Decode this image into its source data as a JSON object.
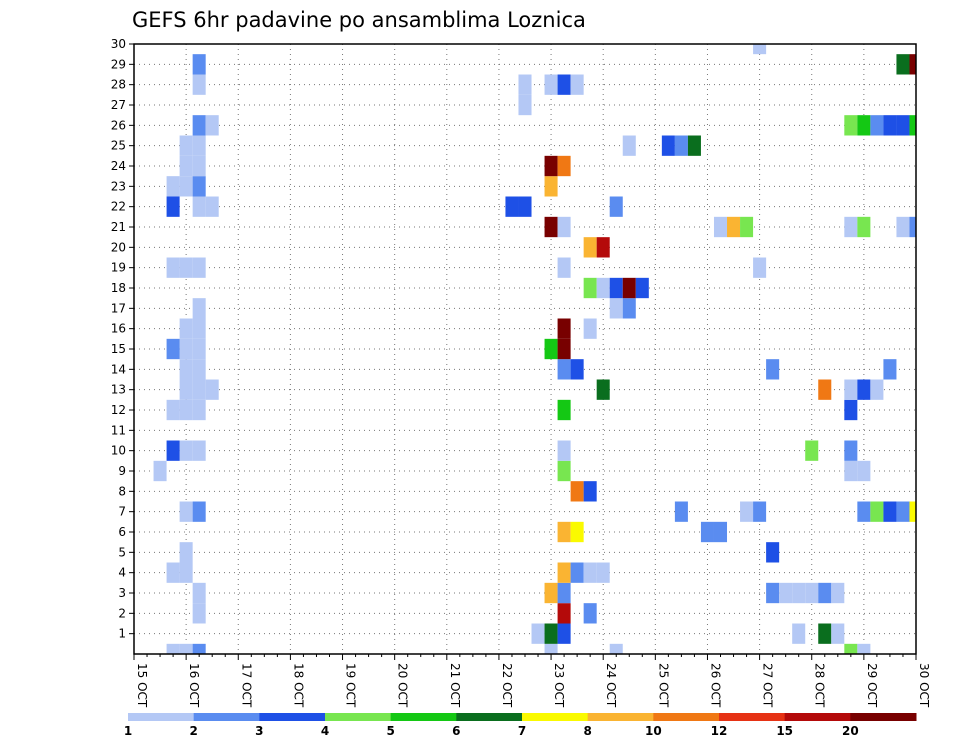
{
  "chart_data": {
    "type": "heatmap",
    "title": "GEFS 6hr padavine po ansamblima Loznica",
    "xlabel": "",
    "ylabel": "",
    "x_tick_labels": [
      "15 OCT",
      "16 OCT",
      "17 OCT",
      "18 OCT",
      "19 OCT",
      "20 OCT",
      "21 OCT",
      "22 OCT",
      "23 OCT",
      "24 OCT",
      "25 OCT",
      "26 OCT",
      "27 OCT",
      "28 OCT",
      "29 OCT",
      "30 OCT"
    ],
    "y_tick_labels": [
      "1",
      "2",
      "3",
      "4",
      "5",
      "6",
      "7",
      "8",
      "9",
      "10",
      "11",
      "12",
      "13",
      "14",
      "15",
      "16",
      "17",
      "18",
      "19",
      "20",
      "21",
      "22",
      "23",
      "24",
      "25",
      "26",
      "27",
      "28",
      "29",
      "30"
    ],
    "xlim_days": [
      0,
      15
    ],
    "ylim": [
      0,
      30
    ],
    "grid": true,
    "time_step_hours": 6,
    "colorbar": {
      "levels": [
        "1",
        "2",
        "3",
        "4",
        "5",
        "6",
        "7",
        "8",
        "10",
        "12",
        "15",
        "20"
      ],
      "colors": [
        "#b4c8f5",
        "#5a8cf0",
        "#1e50e6",
        "#78e650",
        "#14c814",
        "#0a6e1e",
        "#fafa00",
        "#fab432",
        "#f07814",
        "#e63214",
        "#b40a0a",
        "#780000"
      ]
    },
    "cells": [
      {
        "t": "16 OCT 00Z",
        "m": 0,
        "c": 0
      },
      {
        "t": "16 OCT 00Z",
        "m": 4,
        "c": 0
      },
      {
        "t": "16 OCT 00Z",
        "m": 5,
        "c": 0
      },
      {
        "t": "16 OCT 00Z",
        "m": 7,
        "c": 0
      },
      {
        "t": "16 OCT 00Z",
        "m": 10,
        "c": 0
      },
      {
        "t": "16 OCT 00Z",
        "m": 12,
        "c": 0
      },
      {
        "t": "16 OCT 00Z",
        "m": 13,
        "c": 0
      },
      {
        "t": "16 OCT 00Z",
        "m": 14,
        "c": 0
      },
      {
        "t": "16 OCT 00Z",
        "m": 15,
        "c": 0
      },
      {
        "t": "16 OCT 00Z",
        "m": 16,
        "c": 0
      },
      {
        "t": "16 OCT 00Z",
        "m": 19,
        "c": 0
      },
      {
        "t": "16 OCT 00Z",
        "m": 23,
        "c": 0
      },
      {
        "t": "16 OCT 00Z",
        "m": 24,
        "c": 0
      },
      {
        "t": "16 OCT 00Z",
        "m": 25,
        "c": 0
      },
      {
        "t": "15 OCT 18Z",
        "m": 4,
        "c": 0
      },
      {
        "t": "15 OCT 18Z",
        "m": 12,
        "c": 0
      },
      {
        "t": "15 OCT 18Z",
        "m": 15,
        "c": 1
      },
      {
        "t": "15 OCT 18Z",
        "m": 19,
        "c": 0
      },
      {
        "t": "15 OCT 18Z",
        "m": 22,
        "c": 2
      },
      {
        "t": "15 OCT 18Z",
        "m": 23,
        "c": 0
      },
      {
        "t": "15 OCT 12Z",
        "m": 9,
        "c": 0
      },
      {
        "t": "15 OCT 18Z",
        "m": 10,
        "c": 2
      },
      {
        "t": "15 OCT 18Z",
        "m": 0,
        "c": 0
      },
      {
        "t": "16 OCT 06Z",
        "m": 3,
        "c": 0
      },
      {
        "t": "16 OCT 06Z",
        "m": 2,
        "c": 0
      },
      {
        "t": "16 OCT 06Z",
        "m": 7,
        "c": 1
      },
      {
        "t": "16 OCT 06Z",
        "m": 10,
        "c": 0
      },
      {
        "t": "16 OCT 06Z",
        "m": 12,
        "c": 0
      },
      {
        "t": "16 OCT 06Z",
        "m": 13,
        "c": 0
      },
      {
        "t": "16 OCT 06Z",
        "m": 14,
        "c": 0
      },
      {
        "t": "16 OCT 06Z",
        "m": 15,
        "c": 0
      },
      {
        "t": "16 OCT 06Z",
        "m": 16,
        "c": 0
      },
      {
        "t": "16 OCT 06Z",
        "m": 17,
        "c": 0
      },
      {
        "t": "16 OCT 06Z",
        "m": 19,
        "c": 0
      },
      {
        "t": "16 OCT 06Z",
        "m": 22,
        "c": 0
      },
      {
        "t": "16 OCT 06Z",
        "m": 23,
        "c": 1
      },
      {
        "t": "16 OCT 06Z",
        "m": 24,
        "c": 0
      },
      {
        "t": "16 OCT 06Z",
        "m": 25,
        "c": 0
      },
      {
        "t": "16 OCT 06Z",
        "m": 26,
        "c": 1
      },
      {
        "t": "16 OCT 06Z",
        "m": 28,
        "c": 0
      },
      {
        "t": "16 OCT 06Z",
        "m": 29,
        "c": 1
      },
      {
        "t": "16 OCT 06Z",
        "m": 0,
        "c": 1
      },
      {
        "t": "16 OCT 12Z",
        "m": 13,
        "c": 0
      },
      {
        "t": "16 OCT 12Z",
        "m": 22,
        "c": 0
      },
      {
        "t": "16 OCT 12Z",
        "m": 26,
        "c": 0
      },
      {
        "t": "22 OCT 12Z",
        "m": 27,
        "c": 0
      },
      {
        "t": "22 OCT 12Z",
        "m": 28,
        "c": 0
      },
      {
        "t": "22 OCT 06Z",
        "m": 22,
        "c": 2
      },
      {
        "t": "22 OCT 12Z",
        "m": 22,
        "c": 2
      },
      {
        "t": "22 OCT 18Z",
        "m": 1,
        "c": 0
      },
      {
        "t": "23 OCT 00Z",
        "m": 0,
        "c": 0
      },
      {
        "t": "23 OCT 00Z",
        "m": 1,
        "c": 5
      },
      {
        "t": "23 OCT 00Z",
        "m": 3,
        "c": 7
      },
      {
        "t": "23 OCT 00Z",
        "m": 15,
        "c": 4
      },
      {
        "t": "23 OCT 00Z",
        "m": 21,
        "c": 11
      },
      {
        "t": "23 OCT 00Z",
        "m": 23,
        "c": 7
      },
      {
        "t": "23 OCT 00Z",
        "m": 24,
        "c": 11
      },
      {
        "t": "23 OCT 00Z",
        "m": 28,
        "c": 0
      },
      {
        "t": "23 OCT 06Z",
        "m": 1,
        "c": 2
      },
      {
        "t": "23 OCT 06Z",
        "m": 2,
        "c": 10
      },
      {
        "t": "23 OCT 06Z",
        "m": 3,
        "c": 1
      },
      {
        "t": "23 OCT 06Z",
        "m": 4,
        "c": 7
      },
      {
        "t": "23 OCT 06Z",
        "m": 6,
        "c": 7
      },
      {
        "t": "23 OCT 06Z",
        "m": 9,
        "c": 3
      },
      {
        "t": "23 OCT 06Z",
        "m": 10,
        "c": 0
      },
      {
        "t": "23 OCT 06Z",
        "m": 12,
        "c": 4
      },
      {
        "t": "23 OCT 06Z",
        "m": 14,
        "c": 1
      },
      {
        "t": "23 OCT 06Z",
        "m": 15,
        "c": 11
      },
      {
        "t": "23 OCT 06Z",
        "m": 16,
        "c": 11
      },
      {
        "t": "23 OCT 06Z",
        "m": 19,
        "c": 0
      },
      {
        "t": "23 OCT 06Z",
        "m": 21,
        "c": 0
      },
      {
        "t": "23 OCT 06Z",
        "m": 24,
        "c": 8
      },
      {
        "t": "23 OCT 06Z",
        "m": 28,
        "c": 2
      },
      {
        "t": "23 OCT 12Z",
        "m": 4,
        "c": 1
      },
      {
        "t": "23 OCT 12Z",
        "m": 6,
        "c": 6
      },
      {
        "t": "23 OCT 12Z",
        "m": 8,
        "c": 8
      },
      {
        "t": "23 OCT 12Z",
        "m": 14,
        "c": 2
      },
      {
        "t": "23 OCT 12Z",
        "m": 28,
        "c": 0
      },
      {
        "t": "23 OCT 18Z",
        "m": 2,
        "c": 1
      },
      {
        "t": "23 OCT 18Z",
        "m": 4,
        "c": 0
      },
      {
        "t": "23 OCT 18Z",
        "m": 8,
        "c": 2
      },
      {
        "t": "23 OCT 18Z",
        "m": 16,
        "c": 0
      },
      {
        "t": "23 OCT 18Z",
        "m": 18,
        "c": 3
      },
      {
        "t": "23 OCT 18Z",
        "m": 20,
        "c": 7
      },
      {
        "t": "24 OCT 00Z",
        "m": 4,
        "c": 0
      },
      {
        "t": "24 OCT 00Z",
        "m": 13,
        "c": 5
      },
      {
        "t": "24 OCT 00Z",
        "m": 18,
        "c": 0
      },
      {
        "t": "24 OCT 00Z",
        "m": 20,
        "c": 10
      },
      {
        "t": "24 OCT 06Z",
        "m": 0,
        "c": 0
      },
      {
        "t": "24 OCT 06Z",
        "m": 17,
        "c": 0
      },
      {
        "t": "24 OCT 06Z",
        "m": 18,
        "c": 2
      },
      {
        "t": "24 OCT 06Z",
        "m": 22,
        "c": 1
      },
      {
        "t": "24 OCT 12Z",
        "m": 17,
        "c": 1
      },
      {
        "t": "24 OCT 12Z",
        "m": 18,
        "c": 11
      },
      {
        "t": "24 OCT 12Z",
        "m": 25,
        "c": 0
      },
      {
        "t": "24 OCT 18Z",
        "m": 18,
        "c": 2
      },
      {
        "t": "25 OCT 06Z",
        "m": 25,
        "c": 2
      },
      {
        "t": "25 OCT 12Z",
        "m": 7,
        "c": 1
      },
      {
        "t": "25 OCT 12Z",
        "m": 25,
        "c": 1
      },
      {
        "t": "25 OCT 18Z",
        "m": 25,
        "c": 5
      },
      {
        "t": "26 OCT 00Z",
        "m": 6,
        "c": 1
      },
      {
        "t": "26 OCT 06Z",
        "m": 6,
        "c": 1
      },
      {
        "t": "26 OCT 06Z",
        "m": 21,
        "c": 0
      },
      {
        "t": "26 OCT 12Z",
        "m": 21,
        "c": 7
      },
      {
        "t": "26 OCT 18Z",
        "m": 7,
        "c": 0
      },
      {
        "t": "26 OCT 18Z",
        "m": 21,
        "c": 3
      },
      {
        "t": "27 OCT 00Z",
        "m": 7,
        "c": 1
      },
      {
        "t": "27 OCT 00Z",
        "m": 19,
        "c": 0
      },
      {
        "t": "27 OCT 00Z",
        "m": 30,
        "c": 0
      },
      {
        "t": "27 OCT 06Z",
        "m": 3,
        "c": 1
      },
      {
        "t": "27 OCT 06Z",
        "m": 5,
        "c": 2
      },
      {
        "t": "27 OCT 06Z",
        "m": 14,
        "c": 1
      },
      {
        "t": "27 OCT 12Z",
        "m": 3,
        "c": 0
      },
      {
        "t": "27 OCT 18Z",
        "m": 1,
        "c": 0
      },
      {
        "t": "27 OCT 18Z",
        "m": 3,
        "c": 0
      },
      {
        "t": "28 OCT 00Z",
        "m": 3,
        "c": 0
      },
      {
        "t": "28 OCT 00Z",
        "m": 10,
        "c": 3
      },
      {
        "t": "28 OCT 06Z",
        "m": 1,
        "c": 5
      },
      {
        "t": "28 OCT 06Z",
        "m": 3,
        "c": 1
      },
      {
        "t": "28 OCT 06Z",
        "m": 13,
        "c": 8
      },
      {
        "t": "28 OCT 12Z",
        "m": 1,
        "c": 0
      },
      {
        "t": "28 OCT 12Z",
        "m": 3,
        "c": 0
      },
      {
        "t": "28 OCT 18Z",
        "m": 0,
        "c": 3
      },
      {
        "t": "28 OCT 18Z",
        "m": 9,
        "c": 0
      },
      {
        "t": "28 OCT 18Z",
        "m": 10,
        "c": 1
      },
      {
        "t": "28 OCT 18Z",
        "m": 12,
        "c": 2
      },
      {
        "t": "28 OCT 18Z",
        "m": 13,
        "c": 0
      },
      {
        "t": "28 OCT 18Z",
        "m": 21,
        "c": 0
      },
      {
        "t": "28 OCT 18Z",
        "m": 26,
        "c": 3
      },
      {
        "t": "29 OCT 00Z",
        "m": 0,
        "c": 0
      },
      {
        "t": "29 OCT 00Z",
        "m": 7,
        "c": 1
      },
      {
        "t": "29 OCT 00Z",
        "m": 9,
        "c": 0
      },
      {
        "t": "29 OCT 00Z",
        "m": 13,
        "c": 2
      },
      {
        "t": "29 OCT 00Z",
        "m": 21,
        "c": 3
      },
      {
        "t": "29 OCT 00Z",
        "m": 26,
        "c": 4
      },
      {
        "t": "29 OCT 06Z",
        "m": 7,
        "c": 3
      },
      {
        "t": "29 OCT 06Z",
        "m": 13,
        "c": 0
      },
      {
        "t": "29 OCT 06Z",
        "m": 26,
        "c": 1
      },
      {
        "t": "29 OCT 12Z",
        "m": 7,
        "c": 2
      },
      {
        "t": "29 OCT 12Z",
        "m": 14,
        "c": 1
      },
      {
        "t": "29 OCT 12Z",
        "m": 26,
        "c": 2
      },
      {
        "t": "29 OCT 18Z",
        "m": 7,
        "c": 1
      },
      {
        "t": "29 OCT 18Z",
        "m": 21,
        "c": 0
      },
      {
        "t": "29 OCT 18Z",
        "m": 26,
        "c": 2
      },
      {
        "t": "29 OCT 18Z",
        "m": 29,
        "c": 5
      },
      {
        "t": "30 OCT 00Z",
        "m": 7,
        "c": 6
      },
      {
        "t": "30 OCT 00Z",
        "m": 21,
        "c": 1
      },
      {
        "t": "30 OCT 00Z",
        "m": 26,
        "c": 4
      },
      {
        "t": "30 OCT 00Z",
        "m": 29,
        "c": 11
      }
    ]
  }
}
